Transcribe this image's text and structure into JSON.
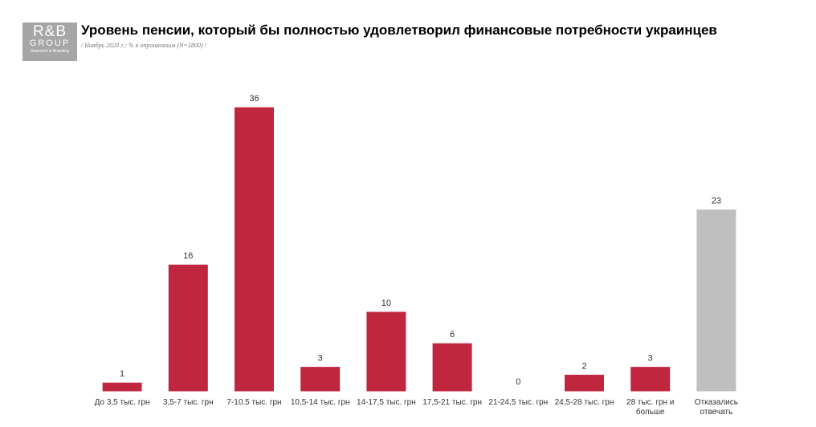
{
  "logo": {
    "name": "R&B",
    "group": "GROUP",
    "tagline": "Research & Branding"
  },
  "chart_data": {
    "type": "bar",
    "title": "Уровень пенсии, который бы полностью удовлетворил финансовые потребности украинцев",
    "subtitle": "/ Ноябрь 2020 г.; % к опрошенным (N=1800) /",
    "categories": [
      "До 3,5 тыс. грн",
      "3,5-7 тыс. грн",
      "7-10.5 тыс. грн",
      "10,5-14 тыс. грн",
      "14-17,5 тыс. грн",
      "17,5-21 тыс. грн",
      "21-24,5 тыс. грн",
      "24,5-28 тыс. грн",
      "28 тыс. грн и\nбольше",
      "Отказались\nотвечать"
    ],
    "values": [
      1,
      16,
      36,
      3,
      10,
      6,
      0,
      2,
      3,
      23
    ],
    "colors": [
      "#c0273f",
      "#c0273f",
      "#c0273f",
      "#c0273f",
      "#c0273f",
      "#c0273f",
      "#c0273f",
      "#c0273f",
      "#c0273f",
      "#bfbfbf"
    ]
  }
}
